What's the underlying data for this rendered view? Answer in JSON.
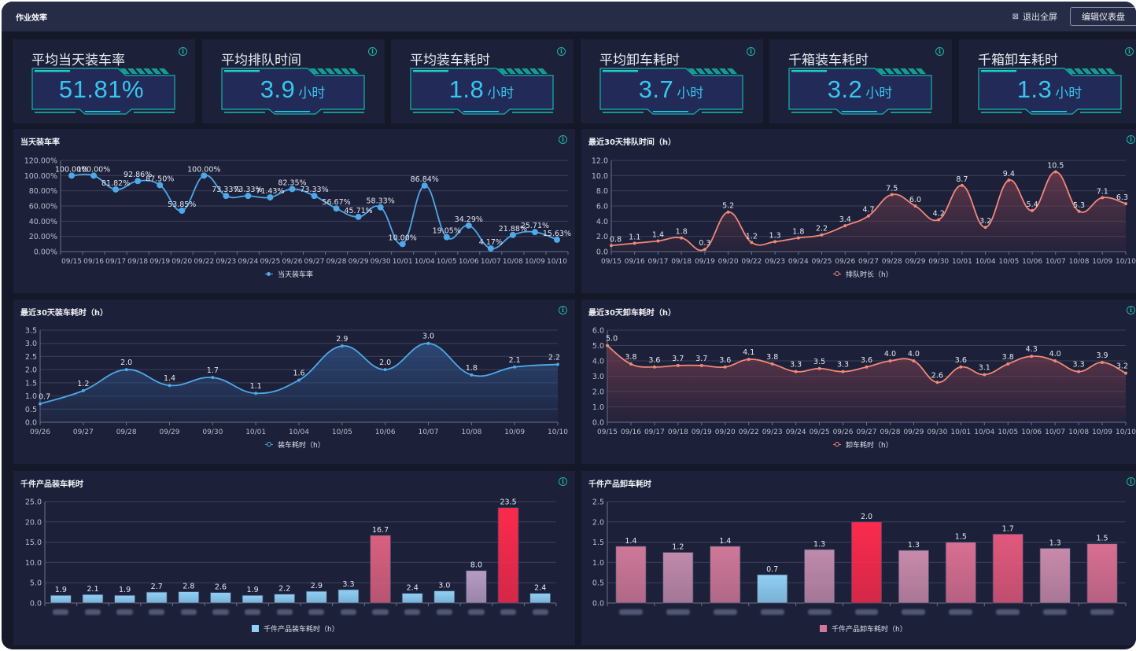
{
  "header": {
    "title": "作业效率",
    "exit_fullscreen_label": "退出全屏",
    "exit_fullscreen_icon": "collapse-icon",
    "edit_dashboard_label": "编辑仪表盘"
  },
  "colors": {
    "background": "#141829",
    "panel": "#1c2038",
    "accent_teal": "#1fb5a7",
    "kpi_value": "#38c6f0",
    "blue_series": "#4fa8e8",
    "salmon_series": "#f08877",
    "bar_light_blue": "#8fd0f5",
    "bar_pink": "#d9607f",
    "bar_red": "#fb2a4c",
    "bar_lavender": "#b59bc2"
  },
  "kpis": [
    {
      "title": "平均当天装车率",
      "value": "51.81%",
      "unit": ""
    },
    {
      "title": "平均排队时间",
      "value": "3.9",
      "unit": "小时"
    },
    {
      "title": "平均装车耗时",
      "value": "1.8",
      "unit": "小时"
    },
    {
      "title": "平均卸车耗时",
      "value": "3.7",
      "unit": "小时"
    },
    {
      "title": "千箱装车耗时",
      "value": "3.2",
      "unit": "小时"
    },
    {
      "title": "千箱卸车耗时",
      "value": "1.3",
      "unit": "小时"
    }
  ],
  "chart_data": [
    {
      "id": "loading_rate",
      "type": "line",
      "title": "当天装车率",
      "legend": "当天装车率",
      "legend_position": "bottom-center",
      "x": [
        "09/15",
        "09/16",
        "09/17",
        "09/18",
        "09/19",
        "09/20",
        "09/22",
        "09/23",
        "09/24",
        "09/25",
        "09/26",
        "09/27",
        "09/28",
        "09/29",
        "09/30",
        "10/01",
        "10/04",
        "10/05",
        "10/06",
        "10/07",
        "10/08",
        "10/09",
        "10/10"
      ],
      "values": [
        100.0,
        100.0,
        81.82,
        92.86,
        87.5,
        53.85,
        100.0,
        73.33,
        73.33,
        71.43,
        82.35,
        73.33,
        56.67,
        45.71,
        58.33,
        10.0,
        86.84,
        19.05,
        34.29,
        4.17,
        21.88,
        25.71,
        15.63
      ],
      "value_format": "percent2",
      "ylim": [
        0,
        120
      ],
      "yticks": [
        "0.00%",
        "20.00%",
        "40.00%",
        "60.00%",
        "80.00%",
        "100.00%",
        "120.00%"
      ],
      "smooth": true,
      "area": false,
      "grid": true
    },
    {
      "id": "queue_time",
      "type": "area",
      "title": "最近30天排队时间（h）",
      "legend": "排队时长（h）",
      "legend_position": "bottom-center",
      "x": [
        "09/15",
        "09/16",
        "09/17",
        "09/18",
        "09/19",
        "09/20",
        "09/22",
        "09/23",
        "09/24",
        "09/25",
        "09/26",
        "09/27",
        "09/28",
        "09/29",
        "09/30",
        "10/01",
        "10/04",
        "10/05",
        "10/06",
        "10/07",
        "10/08",
        "10/09",
        "10/10"
      ],
      "values": [
        0.8,
        1.1,
        1.4,
        1.8,
        0.3,
        5.2,
        1.2,
        1.3,
        1.8,
        2.2,
        3.4,
        4.7,
        7.5,
        6.0,
        4.2,
        8.7,
        3.2,
        9.4,
        5.4,
        10.5,
        5.3,
        7.1,
        6.3
      ],
      "value_format": "fixed1",
      "ylim": [
        0,
        12
      ],
      "yticks": [
        "0.0",
        "2.0",
        "4.0",
        "6.0",
        "8.0",
        "10.0",
        "12.0"
      ],
      "smooth": true,
      "area": true,
      "grid": true
    },
    {
      "id": "loading_time",
      "type": "area",
      "title": "最近30天装车耗时（h）",
      "legend": "装车耗时（h）",
      "legend_position": "bottom-center",
      "x": [
        "09/26",
        "09/27",
        "09/28",
        "09/29",
        "09/30",
        "10/01",
        "10/04",
        "10/05",
        "10/06",
        "10/07",
        "10/08",
        "10/09",
        "10/10"
      ],
      "values": [
        0.7,
        1.2,
        2.0,
        1.4,
        1.7,
        1.1,
        1.6,
        2.9,
        2.0,
        3.0,
        1.8,
        2.1,
        2.2
      ],
      "value_format": "fixed1",
      "ylim": [
        0,
        3.5
      ],
      "yticks": [
        "0.0",
        "0.5",
        "1.0",
        "1.5",
        "2.0",
        "2.5",
        "3.0",
        "3.5"
      ],
      "smooth": true,
      "area": true,
      "grid": true
    },
    {
      "id": "unloading_time",
      "type": "area",
      "title": "最近30天卸车耗时（h）",
      "legend": "卸车耗时（h）",
      "legend_position": "bottom-center",
      "x": [
        "09/15",
        "09/16",
        "09/17",
        "09/18",
        "09/19",
        "09/20",
        "09/22",
        "09/23",
        "09/24",
        "09/25",
        "09/26",
        "09/27",
        "09/28",
        "09/29",
        "09/30",
        "10/01",
        "10/04",
        "10/05",
        "10/06",
        "10/07",
        "10/08",
        "10/09",
        "10/10"
      ],
      "values": [
        5.0,
        3.8,
        3.6,
        3.7,
        3.7,
        3.6,
        4.1,
        3.8,
        3.3,
        3.5,
        3.3,
        3.6,
        4.0,
        4.0,
        2.6,
        3.6,
        3.1,
        3.8,
        4.3,
        4.0,
        3.3,
        3.9,
        3.2
      ],
      "value_format": "fixed1",
      "ylim": [
        0,
        6
      ],
      "yticks": [
        "0.0",
        "1.0",
        "2.0",
        "3.0",
        "4.0",
        "5.0",
        "6.0"
      ],
      "smooth": true,
      "area": true,
      "grid": true
    },
    {
      "id": "per_k_loading",
      "type": "bar",
      "title": "千件产品装车耗时",
      "legend": "千件产品装车耗时（h）",
      "legend_position": "bottom-center",
      "categories_redacted": true,
      "values": [
        1.9,
        2.1,
        1.9,
        2.7,
        2.8,
        2.6,
        1.9,
        2.2,
        2.9,
        3.3,
        16.7,
        2.4,
        3.0,
        8.0,
        23.5,
        2.4
      ],
      "bar_colors": [
        "#8fd0f5",
        "#8fd0f5",
        "#8fd0f5",
        "#8fd0f5",
        "#8fd0f5",
        "#8fd0f5",
        "#8fd0f5",
        "#8fd0f5",
        "#8fd0f5",
        "#8fd0f5",
        "#d9607f",
        "#8fd0f5",
        "#8fd0f5",
        "#b59bc2",
        "#fb2a4c",
        "#8fd0f5"
      ],
      "value_format": "fixed1",
      "ylim": [
        0,
        25
      ],
      "yticks": [
        "0.0",
        "5.0",
        "10.0",
        "15.0",
        "20.0",
        "25.0"
      ],
      "grid": true
    },
    {
      "id": "per_k_unloading",
      "type": "bar",
      "title": "千件产品卸车耗时",
      "legend": "千件产品卸车耗时（h）",
      "legend_position": "bottom-center",
      "categories_redacted": true,
      "values": [
        1.4,
        1.25,
        1.4,
        0.7,
        1.32,
        2.0,
        1.3,
        1.5,
        1.7,
        1.35,
        1.46
      ],
      "labels": [
        "1.4",
        "1.2",
        "1.4",
        "0.7",
        "1.3",
        "2.0",
        "1.3",
        "1.5",
        "1.7",
        "1.3",
        "1.5"
      ],
      "bar_colors": [
        "#cf7898",
        "#c08aab",
        "#cf7898",
        "#8fd0f5",
        "#c08aab",
        "#fb2a4c",
        "#c88aaa",
        "#d86f91",
        "#e2587c",
        "#c88aaa",
        "#d86f91"
      ],
      "value_format": "fixed1",
      "ylim": [
        0,
        2.5
      ],
      "yticks": [
        "0.0",
        "0.5",
        "1.0",
        "1.5",
        "2.0",
        "2.5"
      ],
      "grid": true
    }
  ]
}
